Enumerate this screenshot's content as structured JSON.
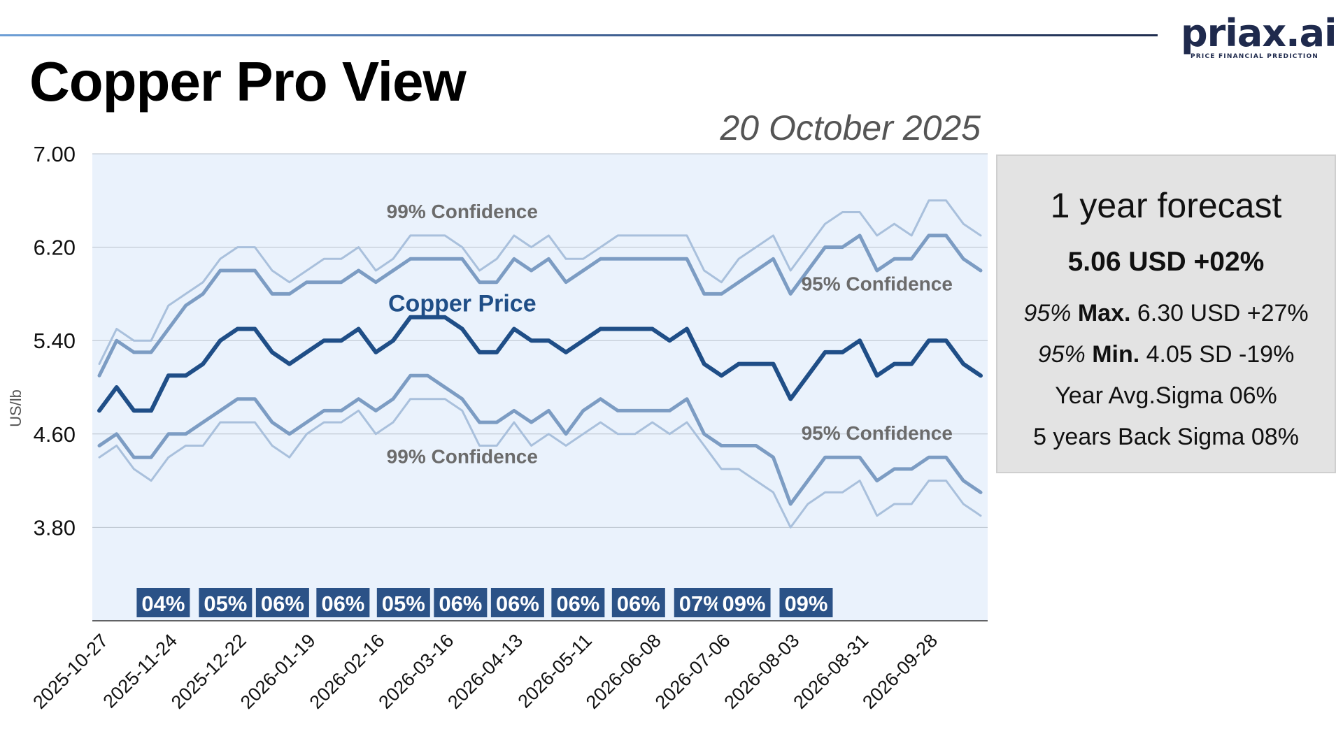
{
  "header": {
    "title": "Copper Pro View",
    "date": "20 October 2025",
    "logo_text": "priax.ai",
    "logo_tagline": "PRICE FINANCIAL PREDICTION"
  },
  "forecast_panel": {
    "title": "1 year forecast",
    "value": "5.06 USD +02%",
    "max_conf": "95%",
    "max_label": "Max.",
    "max_value": "6.30 USD +27%",
    "min_conf": "95%",
    "min_label": "Min.",
    "min_value": "4.05 SD -19%",
    "avg_sigma": "Year Avg.Sigma 06%",
    "back_sigma": "5 years Back Sigma 08%"
  },
  "colors": {
    "plot_bg": "#eaf2fc",
    "price": "#1f4e87",
    "conf95": "#7c9cc3",
    "conf99": "#a9c0dc",
    "badge": "#2b5287",
    "label_gray": "#6b6b6b"
  },
  "chart_data": {
    "type": "line",
    "ylabel": "US/lb",
    "ylim": [
      3.0,
      7.0
    ],
    "y_ticks": [
      "7.00",
      "6.20",
      "5.40",
      "4.60",
      "3.80"
    ],
    "x_tick_labels": [
      "2025-10-27",
      "2025-11-24",
      "2025-12-22",
      "2026-01-19",
      "2026-02-16",
      "2026-03-16",
      "2026-04-13",
      "2026-05-11",
      "2026-06-08",
      "2026-07-06",
      "2026-08-03",
      "2026-08-31",
      "2026-09-28"
    ],
    "grid": true,
    "weekly_points": 52,
    "series": [
      {
        "name": "99% Confidence",
        "band": "upper99",
        "values": [
          5.2,
          5.5,
          5.4,
          5.4,
          5.7,
          5.8,
          5.9,
          6.1,
          6.2,
          6.2,
          6.0,
          5.9,
          6.0,
          6.1,
          6.1,
          6.2,
          6.0,
          6.1,
          6.3,
          6.3,
          6.3,
          6.2,
          6.0,
          6.1,
          6.3,
          6.2,
          6.3,
          6.1,
          6.1,
          6.2,
          6.3,
          6.3,
          6.3,
          6.3,
          6.3,
          6.0,
          5.9,
          6.1,
          6.2,
          6.3,
          6.0,
          6.2,
          6.4,
          6.5,
          6.5,
          6.3,
          6.4,
          6.3,
          6.6,
          6.6,
          6.4,
          6.3
        ]
      },
      {
        "name": "95% Confidence",
        "band": "upper95",
        "values": [
          5.1,
          5.4,
          5.3,
          5.3,
          5.5,
          5.7,
          5.8,
          6.0,
          6.0,
          6.0,
          5.8,
          5.8,
          5.9,
          5.9,
          5.9,
          6.0,
          5.9,
          6.0,
          6.1,
          6.1,
          6.1,
          6.1,
          5.9,
          5.9,
          6.1,
          6.0,
          6.1,
          5.9,
          6.0,
          6.1,
          6.1,
          6.1,
          6.1,
          6.1,
          6.1,
          5.8,
          5.8,
          5.9,
          6.0,
          6.1,
          5.8,
          6.0,
          6.2,
          6.2,
          6.3,
          6.0,
          6.1,
          6.1,
          6.3,
          6.3,
          6.1,
          6.0
        ]
      },
      {
        "name": "Copper Price",
        "band": "price",
        "values": [
          4.8,
          5.0,
          4.8,
          4.8,
          5.1,
          5.1,
          5.2,
          5.4,
          5.5,
          5.5,
          5.3,
          5.2,
          5.3,
          5.4,
          5.4,
          5.5,
          5.3,
          5.4,
          5.6,
          5.6,
          5.6,
          5.5,
          5.3,
          5.3,
          5.5,
          5.4,
          5.4,
          5.3,
          5.4,
          5.5,
          5.5,
          5.5,
          5.5,
          5.4,
          5.5,
          5.2,
          5.1,
          5.2,
          5.2,
          5.2,
          4.9,
          5.1,
          5.3,
          5.3,
          5.4,
          5.1,
          5.2,
          5.2,
          5.4,
          5.4,
          5.2,
          5.1
        ]
      },
      {
        "name": "95% Confidence",
        "band": "lower95",
        "values": [
          4.5,
          4.6,
          4.4,
          4.4,
          4.6,
          4.6,
          4.7,
          4.8,
          4.9,
          4.9,
          4.7,
          4.6,
          4.7,
          4.8,
          4.8,
          4.9,
          4.8,
          4.9,
          5.1,
          5.1,
          5.0,
          4.9,
          4.7,
          4.7,
          4.8,
          4.7,
          4.8,
          4.6,
          4.8,
          4.9,
          4.8,
          4.8,
          4.8,
          4.8,
          4.9,
          4.6,
          4.5,
          4.5,
          4.5,
          4.4,
          4.0,
          4.2,
          4.4,
          4.4,
          4.4,
          4.2,
          4.3,
          4.3,
          4.4,
          4.4,
          4.2,
          4.1
        ]
      },
      {
        "name": "99% Confidence",
        "band": "lower99",
        "values": [
          4.4,
          4.5,
          4.3,
          4.2,
          4.4,
          4.5,
          4.5,
          4.7,
          4.7,
          4.7,
          4.5,
          4.4,
          4.6,
          4.7,
          4.7,
          4.8,
          4.6,
          4.7,
          4.9,
          4.9,
          4.9,
          4.8,
          4.5,
          4.5,
          4.7,
          4.5,
          4.6,
          4.5,
          4.6,
          4.7,
          4.6,
          4.6,
          4.7,
          4.6,
          4.7,
          4.5,
          4.3,
          4.3,
          4.2,
          4.1,
          3.8,
          4.0,
          4.1,
          4.1,
          4.2,
          3.9,
          4.0,
          4.0,
          4.2,
          4.2,
          4.0,
          3.9
        ]
      }
    ],
    "annotations": [
      {
        "text": "99% Confidence",
        "x_index": 21,
        "y": 6.45
      },
      {
        "text": "Copper Price",
        "x_index": 21,
        "y": 5.65
      },
      {
        "text": "95% Confidence",
        "x_index": 45,
        "y": 5.83
      },
      {
        "text": "95% Confidence",
        "x_index": 45,
        "y": 4.55
      },
      {
        "text": "99% Confidence",
        "x_index": 21,
        "y": 4.35
      }
    ],
    "sigma_badges": [
      {
        "label": "04%",
        "x_index": 3.7
      },
      {
        "label": "05%",
        "x_index": 7.3
      },
      {
        "label": "06%",
        "x_index": 10.6
      },
      {
        "label": "06%",
        "x_index": 14.1
      },
      {
        "label": "05%",
        "x_index": 17.6
      },
      {
        "label": "06%",
        "x_index": 20.9
      },
      {
        "label": "06%",
        "x_index": 24.2
      },
      {
        "label": "06%",
        "x_index": 27.7
      },
      {
        "label": "06%",
        "x_index": 31.2
      },
      {
        "label": "07%",
        "x_index": 34.8
      },
      {
        "label": "09%",
        "x_index": 37.3
      },
      {
        "label": "09%",
        "x_index": 40.9
      }
    ]
  }
}
